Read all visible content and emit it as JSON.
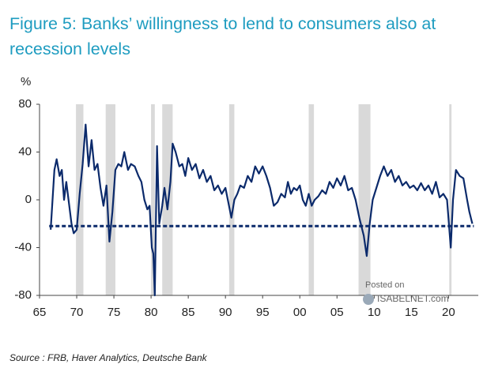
{
  "chart_data": {
    "type": "line",
    "title": "Figure 5: Banks’ willingness to lend to consumers also at recession levels",
    "y_label": "%",
    "source": "Source : FRB, Haver Analytics, Deutsche Bank",
    "watermark": [
      "Posted on",
      "ISABELNET.com"
    ],
    "xlim": [
      1965,
      2024
    ],
    "ylim": [
      -80,
      80
    ],
    "xticks": [
      {
        "value": 1965,
        "label": "65"
      },
      {
        "value": 1970,
        "label": "70"
      },
      {
        "value": 1975,
        "label": "75"
      },
      {
        "value": 1980,
        "label": "80"
      },
      {
        "value": 1985,
        "label": "85"
      },
      {
        "value": 1990,
        "label": "90"
      },
      {
        "value": 1995,
        "label": "95"
      },
      {
        "value": 2000,
        "label": "00"
      },
      {
        "value": 2005,
        "label": "05"
      },
      {
        "value": 2010,
        "label": "10"
      },
      {
        "value": 2015,
        "label": "15"
      },
      {
        "value": 2020,
        "label": "20"
      }
    ],
    "yticks": [
      80,
      40,
      0,
      -40,
      -80
    ],
    "shaded_ranges": [
      [
        1969.9,
        1970.9
      ],
      [
        1973.9,
        1975.2
      ],
      [
        1980.0,
        1980.5
      ],
      [
        1981.5,
        1982.9
      ],
      [
        1990.5,
        1991.2
      ],
      [
        2001.2,
        2001.9
      ],
      [
        2007.9,
        2009.5
      ],
      [
        2020.1,
        2020.4
      ]
    ],
    "shade_color": "#d9d9d9",
    "reference_line": {
      "value": -22,
      "x": [
        1966.3,
        2023.4
      ],
      "color": "#0b2a6b"
    },
    "series": [
      {
        "name": "Willingness to lend",
        "color": "#0b2a6b",
        "x": [
          1966.5,
          1967,
          1967.3,
          1967.7,
          1968,
          1968.3,
          1968.6,
          1969.3,
          1969.6,
          1970,
          1970.4,
          1970.8,
          1971.2,
          1971.6,
          1972,
          1972.4,
          1972.8,
          1973.2,
          1973.6,
          1974,
          1974.4,
          1974.8,
          1975.2,
          1975.6,
          1976,
          1976.4,
          1976.9,
          1977.3,
          1977.8,
          1978.3,
          1978.7,
          1979.1,
          1979.5,
          1979.8,
          1980.1,
          1980.3,
          1980.5,
          1980.8,
          1981.1,
          1981.5,
          1981.8,
          1982.2,
          1982.6,
          1982.9,
          1983.3,
          1983.8,
          1984.2,
          1984.6,
          1985,
          1985.5,
          1986,
          1986.5,
          1987,
          1987.5,
          1988,
          1988.5,
          1989,
          1989.5,
          1990,
          1990.8,
          1991.2,
          1991.6,
          1992,
          1992.5,
          1993,
          1993.5,
          1994,
          1994.5,
          1995,
          1995.5,
          1996,
          1996.5,
          1997,
          1997.5,
          1998,
          1998.4,
          1998.8,
          1999.2,
          1999.6,
          2000,
          2000.4,
          2000.8,
          2001.2,
          2001.6,
          2002,
          2002.5,
          2003,
          2003.5,
          2004,
          2004.5,
          2005,
          2005.5,
          2006,
          2006.5,
          2007,
          2007.5,
          2008,
          2008.6,
          2009,
          2009.4,
          2009.8,
          2010.3,
          2010.8,
          2011.3,
          2011.8,
          2012.3,
          2012.8,
          2013.3,
          2013.8,
          2014.3,
          2014.8,
          2015.3,
          2015.8,
          2016.3,
          2016.8,
          2017.3,
          2017.8,
          2018.3,
          2018.8,
          2019.3,
          2019.8,
          2020.3,
          2020.6,
          2021,
          2021.5,
          2022,
          2022.5,
          2022.8,
          2023.2
        ],
        "values": [
          -25,
          25,
          34,
          20,
          25,
          0,
          15,
          -20,
          -28,
          -25,
          5,
          30,
          63,
          28,
          50,
          25,
          30,
          10,
          -5,
          12,
          -35,
          -10,
          25,
          30,
          28,
          40,
          25,
          30,
          28,
          20,
          15,
          0,
          -8,
          -5,
          -40,
          -45,
          -80,
          45,
          -20,
          -5,
          10,
          -8,
          15,
          47,
          40,
          28,
          30,
          20,
          35,
          25,
          30,
          18,
          25,
          15,
          20,
          8,
          12,
          5,
          10,
          -15,
          0,
          5,
          12,
          10,
          20,
          15,
          28,
          22,
          28,
          20,
          10,
          -5,
          -2,
          5,
          2,
          15,
          5,
          10,
          8,
          12,
          0,
          -5,
          5,
          -5,
          0,
          3,
          8,
          5,
          15,
          10,
          18,
          12,
          20,
          8,
          10,
          0,
          -15,
          -30,
          -47,
          -20,
          0,
          10,
          20,
          28,
          20,
          25,
          15,
          20,
          12,
          15,
          10,
          12,
          8,
          14,
          8,
          12,
          5,
          15,
          2,
          5,
          0,
          -40,
          0,
          25,
          20,
          18,
          0,
          -10,
          -20
        ]
      }
    ]
  }
}
